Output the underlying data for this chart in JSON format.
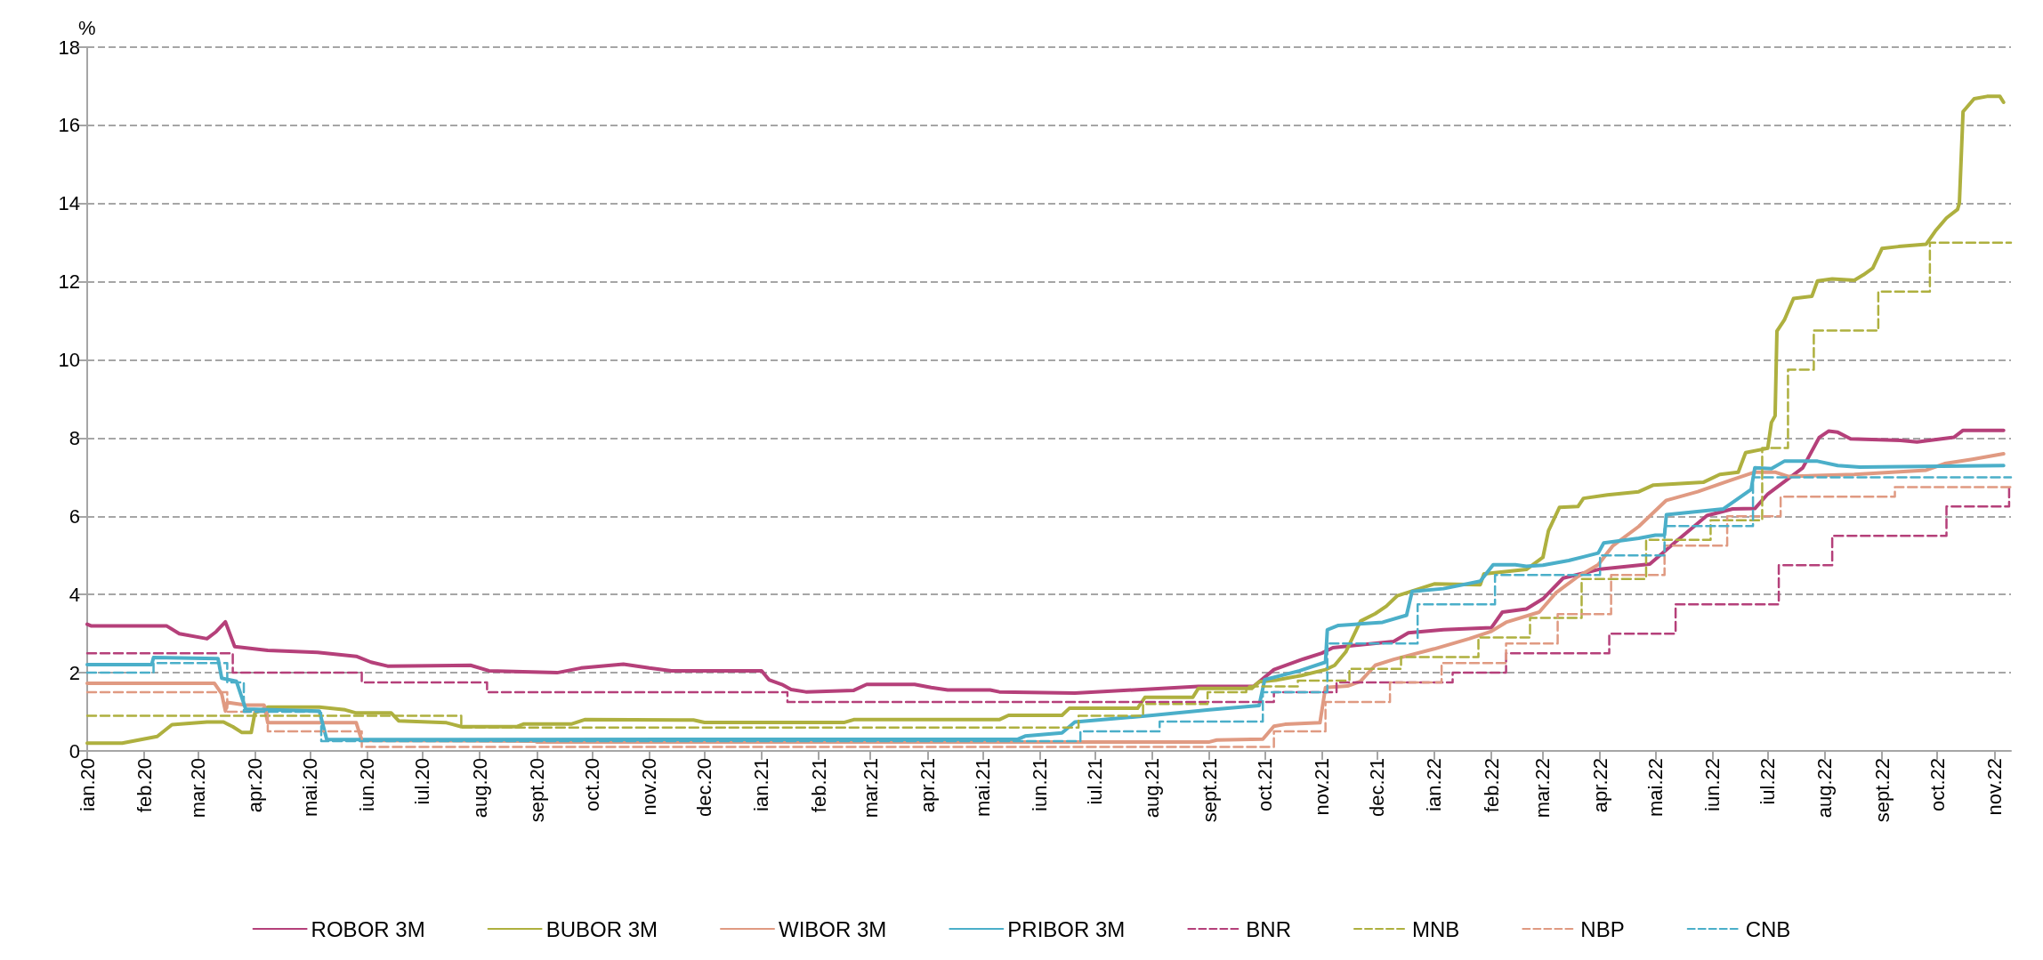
{
  "chart_data": {
    "type": "line",
    "ylabel": "%",
    "ylim": [
      0,
      18
    ],
    "yticks": [
      0,
      2,
      4,
      6,
      8,
      10,
      12,
      14,
      16,
      18
    ],
    "xlim": [
      "2020-01-01",
      "2022-11-10"
    ],
    "xticks": [
      {
        "value": "2020-01-01",
        "label": "ian.20"
      },
      {
        "value": "2020-02-01",
        "label": "feb.20"
      },
      {
        "value": "2020-03-01",
        "label": "mar.20"
      },
      {
        "value": "2020-04-01",
        "label": "apr.20"
      },
      {
        "value": "2020-05-01",
        "label": "mai.20"
      },
      {
        "value": "2020-06-01",
        "label": "iun.20"
      },
      {
        "value": "2020-07-01",
        "label": "iul.20"
      },
      {
        "value": "2020-08-01",
        "label": "aug.20"
      },
      {
        "value": "2020-09-01",
        "label": "sept.20"
      },
      {
        "value": "2020-10-01",
        "label": "oct.20"
      },
      {
        "value": "2020-11-01",
        "label": "nov.20"
      },
      {
        "value": "2020-12-01",
        "label": "dec.20"
      },
      {
        "value": "2021-01-01",
        "label": "ian.21"
      },
      {
        "value": "2021-02-01",
        "label": "feb.21"
      },
      {
        "value": "2021-03-01",
        "label": "mar.21"
      },
      {
        "value": "2021-04-01",
        "label": "apr.21"
      },
      {
        "value": "2021-05-01",
        "label": "mai.21"
      },
      {
        "value": "2021-06-01",
        "label": "iun.21"
      },
      {
        "value": "2021-07-01",
        "label": "iul.21"
      },
      {
        "value": "2021-08-01",
        "label": "aug.21"
      },
      {
        "value": "2021-09-01",
        "label": "sept.21"
      },
      {
        "value": "2021-10-01",
        "label": "oct.21"
      },
      {
        "value": "2021-11-01",
        "label": "nov.21"
      },
      {
        "value": "2021-12-01",
        "label": "dec.21"
      },
      {
        "value": "2022-01-01",
        "label": "ian.22"
      },
      {
        "value": "2022-02-01",
        "label": "feb.22"
      },
      {
        "value": "2022-03-01",
        "label": "mar.22"
      },
      {
        "value": "2022-04-01",
        "label": "apr.22"
      },
      {
        "value": "2022-05-01",
        "label": "mai.22"
      },
      {
        "value": "2022-06-01",
        "label": "iun.22"
      },
      {
        "value": "2022-07-01",
        "label": "iul.22"
      },
      {
        "value": "2022-08-01",
        "label": "aug.22"
      },
      {
        "value": "2022-09-01",
        "label": "sept.22"
      },
      {
        "value": "2022-10-01",
        "label": "oct.22"
      },
      {
        "value": "2022-11-01",
        "label": "nov.22"
      }
    ],
    "grid": "y",
    "legend": "bottom",
    "marker": "none",
    "series": [
      {
        "name": "ROBOR 3M",
        "line_style": "solid",
        "color": "#b5407a",
        "x": [
          "2020-01-01",
          "2020-01-03",
          "2020-02-13",
          "2020-02-20",
          "2020-03-06",
          "2020-03-11",
          "2020-03-16",
          "2020-03-21",
          "2020-04-08",
          "2020-05-05",
          "2020-05-26",
          "2020-06-03",
          "2020-06-12",
          "2020-07-27",
          "2020-08-06",
          "2020-09-12",
          "2020-09-25",
          "2020-10-18",
          "2020-11-01",
          "2020-11-13",
          "2021-01-01",
          "2021-01-05",
          "2021-01-12",
          "2021-01-17",
          "2021-01-25",
          "2021-02-20",
          "2021-02-27",
          "2021-03-25",
          "2021-04-03",
          "2021-04-12",
          "2021-05-05",
          "2021-05-10",
          "2021-06-20",
          "2021-07-22",
          "2021-08-26",
          "2021-09-25",
          "2021-10-06",
          "2021-10-22",
          "2021-11-01",
          "2021-11-07",
          "2021-12-10",
          "2021-12-18",
          "2022-01-06",
          "2022-02-01",
          "2022-02-07",
          "2022-02-20",
          "2022-03-01",
          "2022-03-12",
          "2022-04-01",
          "2022-04-28",
          "2022-05-12",
          "2022-05-29",
          "2022-06-12",
          "2022-06-24",
          "2022-07-01",
          "2022-07-20",
          "2022-07-29",
          "2022-08-03",
          "2022-08-08",
          "2022-08-15",
          "2022-09-11",
          "2022-09-20",
          "2022-10-10",
          "2022-10-15",
          "2022-11-06"
        ],
        "values": [
          3.24,
          3.2,
          3.2,
          3.0,
          2.87,
          3.05,
          3.3,
          2.67,
          2.57,
          2.52,
          2.42,
          2.27,
          2.17,
          2.19,
          2.05,
          2.0,
          2.12,
          2.22,
          2.12,
          2.05,
          2.05,
          1.82,
          1.7,
          1.57,
          1.51,
          1.55,
          1.7,
          1.7,
          1.62,
          1.56,
          1.56,
          1.51,
          1.48,
          1.56,
          1.65,
          1.65,
          2.08,
          2.35,
          2.5,
          2.64,
          2.8,
          3.02,
          3.1,
          3.15,
          3.55,
          3.63,
          3.89,
          4.42,
          4.65,
          4.78,
          5.35,
          6.02,
          6.19,
          6.2,
          6.57,
          7.24,
          8.02,
          8.18,
          8.15,
          7.98,
          7.94,
          7.9,
          8.02,
          8.2,
          8.2
        ]
      },
      {
        "name": "BUBOR 3M",
        "line_style": "solid",
        "color": "#aeb03f",
        "x": [
          "2020-01-01",
          "2020-01-20",
          "2020-02-08",
          "2020-02-16",
          "2020-03-06",
          "2020-03-15",
          "2020-03-20",
          "2020-03-25",
          "2020-03-30",
          "2020-04-01",
          "2020-04-08",
          "2020-05-06",
          "2020-05-20",
          "2020-05-26",
          "2020-06-14",
          "2020-06-18",
          "2020-07-14",
          "2020-07-22",
          "2020-08-21",
          "2020-08-25",
          "2020-09-20",
          "2020-09-27",
          "2020-11-25",
          "2020-12-01",
          "2021-02-15",
          "2021-02-20",
          "2021-05-10",
          "2021-05-15",
          "2021-06-13",
          "2021-06-17",
          "2021-07-24",
          "2021-07-28",
          "2021-08-23",
          "2021-08-26",
          "2021-09-24",
          "2021-09-28",
          "2021-10-07",
          "2021-10-21",
          "2021-11-03",
          "2021-11-08",
          "2021-11-14",
          "2021-11-22",
          "2021-11-30",
          "2021-12-06",
          "2021-12-12",
          "2022-01-01",
          "2022-01-26",
          "2022-01-28",
          "2022-02-20",
          "2022-03-01",
          "2022-03-04",
          "2022-03-10",
          "2022-03-20",
          "2022-03-23",
          "2022-04-05",
          "2022-04-22",
          "2022-04-30",
          "2022-05-27",
          "2022-06-05",
          "2022-06-15",
          "2022-06-19",
          "2022-07-01",
          "2022-07-03",
          "2022-07-05",
          "2022-07-06",
          "2022-07-10",
          "2022-07-15",
          "2022-07-25",
          "2022-07-28",
          "2022-08-05",
          "2022-08-17",
          "2022-08-22",
          "2022-08-27",
          "2022-09-01",
          "2022-09-10",
          "2022-09-25",
          "2022-09-30",
          "2022-10-06",
          "2022-10-12",
          "2022-10-13",
          "2022-10-15",
          "2022-10-21",
          "2022-10-28",
          "2022-11-04",
          "2022-11-06"
        ],
        "values": [
          0.2,
          0.2,
          0.37,
          0.67,
          0.74,
          0.74,
          0.62,
          0.47,
          0.47,
          0.97,
          1.12,
          1.12,
          1.05,
          0.97,
          0.97,
          0.77,
          0.72,
          0.62,
          0.62,
          0.69,
          0.69,
          0.8,
          0.79,
          0.73,
          0.73,
          0.8,
          0.8,
          0.91,
          0.91,
          1.09,
          1.09,
          1.37,
          1.37,
          1.6,
          1.6,
          1.77,
          1.81,
          1.93,
          2.08,
          2.19,
          2.53,
          3.32,
          3.51,
          3.7,
          3.97,
          4.27,
          4.25,
          4.53,
          4.64,
          4.95,
          5.63,
          6.23,
          6.25,
          6.46,
          6.55,
          6.63,
          6.8,
          6.87,
          7.07,
          7.13,
          7.63,
          7.74,
          8.4,
          8.57,
          10.74,
          11.02,
          11.57,
          11.63,
          12.02,
          12.07,
          12.04,
          12.18,
          12.35,
          12.85,
          12.9,
          12.96,
          13.3,
          13.63,
          13.85,
          14.01,
          16.35,
          16.68,
          16.74,
          16.74,
          16.59
        ]
      },
      {
        "name": "WIBOR 3M",
        "line_style": "solid",
        "color": "#e09a82",
        "x": [
          "2020-01-01",
          "2020-03-10",
          "2020-03-14",
          "2020-03-16",
          "2020-03-17",
          "2020-03-27",
          "2020-04-06",
          "2020-04-08",
          "2020-05-26",
          "2020-05-29",
          "2020-08-31",
          "2020-09-01",
          "2021-09-01",
          "2021-09-05",
          "2021-09-30",
          "2021-10-06",
          "2021-10-12",
          "2021-10-31",
          "2021-11-03",
          "2021-11-15",
          "2021-11-22",
          "2021-11-30",
          "2021-12-10",
          "2022-01-01",
          "2022-01-20",
          "2022-02-01",
          "2022-02-09",
          "2022-02-27",
          "2022-03-08",
          "2022-03-20",
          "2022-03-31",
          "2022-04-08",
          "2022-04-22",
          "2022-05-07",
          "2022-05-24",
          "2022-06-10",
          "2022-06-24",
          "2022-07-05",
          "2022-07-12",
          "2022-08-17",
          "2022-09-25",
          "2022-10-05",
          "2022-10-20",
          "2022-11-06"
        ],
        "values": [
          1.73,
          1.73,
          1.46,
          1.02,
          1.24,
          1.17,
          1.17,
          0.72,
          0.72,
          0.27,
          0.25,
          0.23,
          0.23,
          0.28,
          0.3,
          0.63,
          0.68,
          0.72,
          1.62,
          1.66,
          1.78,
          2.19,
          2.34,
          2.61,
          2.87,
          3.06,
          3.29,
          3.55,
          4.04,
          4.46,
          4.76,
          5.25,
          5.74,
          6.41,
          6.63,
          6.91,
          7.13,
          7.13,
          7.02,
          7.07,
          7.18,
          7.35,
          7.46,
          7.6
        ]
      },
      {
        "name": "PRIBOR 3M",
        "line_style": "solid",
        "color": "#4bafc9",
        "x": [
          "2020-01-01",
          "2020-02-05",
          "2020-02-06",
          "2020-03-12",
          "2020-03-14",
          "2020-03-22",
          "2020-03-27",
          "2020-05-06",
          "2020-05-10",
          "2021-05-20",
          "2021-05-24",
          "2021-06-13",
          "2021-06-20",
          "2021-08-01",
          "2021-09-01",
          "2021-09-28",
          "2021-10-01",
          "2021-10-20",
          "2021-11-03",
          "2021-11-04",
          "2021-11-10",
          "2021-12-04",
          "2021-12-17",
          "2021-12-20",
          "2022-01-06",
          "2022-01-26",
          "2022-02-02",
          "2022-02-14",
          "2022-02-20",
          "2022-03-01",
          "2022-03-15",
          "2022-03-31",
          "2022-04-03",
          "2022-04-22",
          "2022-05-01",
          "2022-05-06",
          "2022-05-07",
          "2022-06-07",
          "2022-06-17",
          "2022-06-22",
          "2022-06-24",
          "2022-07-03",
          "2022-07-10",
          "2022-07-28",
          "2022-08-08",
          "2022-08-20",
          "2022-11-06"
        ],
        "values": [
          2.21,
          2.21,
          2.39,
          2.36,
          1.86,
          1.78,
          1.07,
          1.02,
          0.29,
          0.3,
          0.38,
          0.46,
          0.74,
          0.91,
          1.05,
          1.16,
          1.82,
          2.05,
          2.27,
          3.1,
          3.21,
          3.29,
          3.47,
          4.08,
          4.15,
          4.34,
          4.76,
          4.76,
          4.72,
          4.75,
          4.87,
          5.06,
          5.32,
          5.44,
          5.52,
          5.52,
          6.04,
          6.19,
          6.52,
          6.69,
          7.24,
          7.22,
          7.41,
          7.41,
          7.3,
          7.26,
          7.3
        ]
      },
      {
        "name": "BNR",
        "type": "step",
        "line_style": "dashed",
        "color": "#b5407a",
        "x": [
          "2020-01-01",
          "2020-03-20",
          "2020-05-29",
          "2020-08-05",
          "2021-01-15",
          "2021-10-06",
          "2021-11-09",
          "2022-01-11",
          "2022-02-09",
          "2022-04-06",
          "2022-05-12",
          "2022-07-07",
          "2022-08-05",
          "2022-10-06",
          "2022-11-09",
          "2022-11-10"
        ],
        "values": [
          2.5,
          2.0,
          1.75,
          1.5,
          1.25,
          1.5,
          1.75,
          2.0,
          2.5,
          3.0,
          3.75,
          4.75,
          5.5,
          6.25,
          6.75,
          6.75
        ]
      },
      {
        "name": "MNB",
        "type": "step",
        "line_style": "dashed",
        "color": "#aeb03f",
        "x": [
          "2020-01-01",
          "2020-07-22",
          "2021-06-22",
          "2021-07-27",
          "2021-08-31",
          "2021-09-21",
          "2021-10-19",
          "2021-11-16",
          "2021-12-14",
          "2022-01-25",
          "2022-02-22",
          "2022-03-22",
          "2022-04-26",
          "2022-05-31",
          "2022-06-28",
          "2022-07-12",
          "2022-07-26",
          "2022-08-30",
          "2022-09-27",
          "2022-11-10"
        ],
        "values": [
          0.9,
          0.6,
          0.9,
          1.2,
          1.5,
          1.65,
          1.8,
          2.1,
          2.4,
          2.9,
          3.4,
          4.4,
          5.4,
          5.9,
          7.75,
          9.75,
          10.75,
          11.75,
          13.0,
          13.0
        ]
      },
      {
        "name": "NBP",
        "type": "step",
        "line_style": "dashed",
        "color": "#e09a82",
        "x": [
          "2020-01-01",
          "2020-03-17",
          "2020-04-08",
          "2020-05-29",
          "2021-10-06",
          "2021-11-03",
          "2021-12-08",
          "2022-01-05",
          "2022-02-09",
          "2022-03-09",
          "2022-04-07",
          "2022-05-06",
          "2022-06-09",
          "2022-07-08",
          "2022-09-08",
          "2022-11-10"
        ],
        "values": [
          1.5,
          1.0,
          0.5,
          0.1,
          0.5,
          1.25,
          1.75,
          2.25,
          2.75,
          3.5,
          4.5,
          5.25,
          6.0,
          6.5,
          6.75,
          6.75
        ]
      },
      {
        "name": "CNB",
        "type": "step",
        "line_style": "dashed",
        "color": "#4bafc9",
        "x": [
          "2020-01-01",
          "2020-02-06",
          "2020-03-17",
          "2020-03-26",
          "2020-05-07",
          "2021-06-23",
          "2021-08-05",
          "2021-09-30",
          "2021-11-04",
          "2021-12-23",
          "2022-02-03",
          "2022-04-01",
          "2022-05-06",
          "2022-06-23",
          "2022-11-10"
        ],
        "values": [
          2.0,
          2.25,
          1.75,
          1.0,
          0.25,
          0.5,
          0.75,
          1.5,
          2.75,
          3.75,
          4.5,
          5.0,
          5.75,
          7.0,
          7.0
        ]
      }
    ]
  }
}
